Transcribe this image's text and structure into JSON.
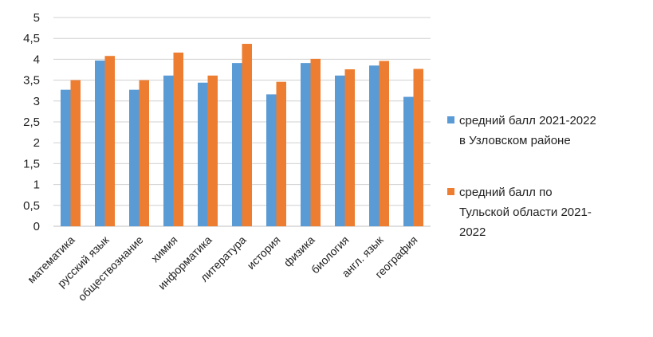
{
  "chart_data": {
    "type": "bar",
    "categories": [
      "математика",
      "русский язык",
      "обществознание",
      "химия",
      "информатика",
      "литература",
      "история",
      "физика",
      "биология",
      "англ. язык",
      "география"
    ],
    "series": [
      {
        "name_lines": [
          "средний балл 2021-2022",
          "в Узловском районе"
        ],
        "color": "#5b9bd5",
        "values": [
          3.27,
          3.97,
          3.27,
          3.61,
          3.44,
          3.91,
          3.16,
          3.91,
          3.61,
          3.85,
          3.1
        ]
      },
      {
        "name_lines": [
          "средний балл по",
          "Тульской области 2021-",
          "2022"
        ],
        "color": "#ed7d31",
        "values": [
          3.5,
          4.08,
          3.5,
          4.16,
          3.61,
          4.37,
          3.46,
          4.01,
          3.76,
          3.96,
          3.77
        ]
      }
    ],
    "y_ticks": [
      "0",
      "0,5",
      "1",
      "1,5",
      "2",
      "2,5",
      "3",
      "3,5",
      "4",
      "4,5",
      "5"
    ],
    "ylim": [
      0,
      5
    ],
    "grid": true,
    "legend_position": "right"
  }
}
